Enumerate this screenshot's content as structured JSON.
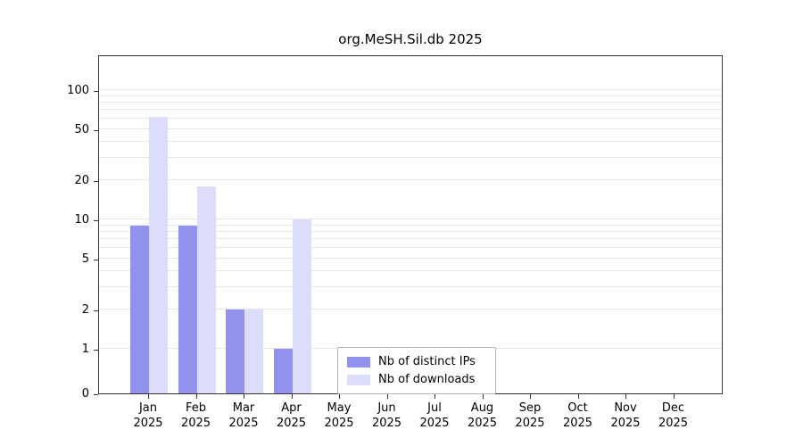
{
  "title": "org.MeSH.Sil.db 2025",
  "chart_data": {
    "type": "bar",
    "title": "org.MeSH.Sil.db 2025",
    "categories": [
      "Jan 2025",
      "Feb 2025",
      "Mar 2025",
      "Apr 2025",
      "May 2025",
      "Jun 2025",
      "Jul 2025",
      "Aug 2025",
      "Sep 2025",
      "Oct 2025",
      "Nov 2025",
      "Dec 2025"
    ],
    "series": [
      {
        "name": "Nb of distinct IPs",
        "color": "#9191ee",
        "values": [
          9,
          9,
          2,
          1,
          0,
          0,
          0,
          0,
          0,
          0,
          0,
          0
        ]
      },
      {
        "name": "Nb of downloads",
        "color": "#dcdcfb",
        "values": [
          62,
          18,
          2,
          10,
          0,
          0,
          0,
          0,
          0,
          0,
          0,
          0
        ]
      }
    ],
    "yscale": "log",
    "yticks": [
      0,
      1,
      2,
      5,
      10,
      20,
      50,
      100
    ],
    "grid_values": [
      1,
      2,
      3,
      4,
      5,
      6,
      7,
      8,
      9,
      10,
      20,
      30,
      40,
      50,
      60,
      70,
      80,
      90,
      100
    ],
    "ylim": [
      0,
      100
    ],
    "xlabel": "",
    "ylabel": "",
    "legend_position": "inside-bottom-center",
    "grid": true
  }
}
